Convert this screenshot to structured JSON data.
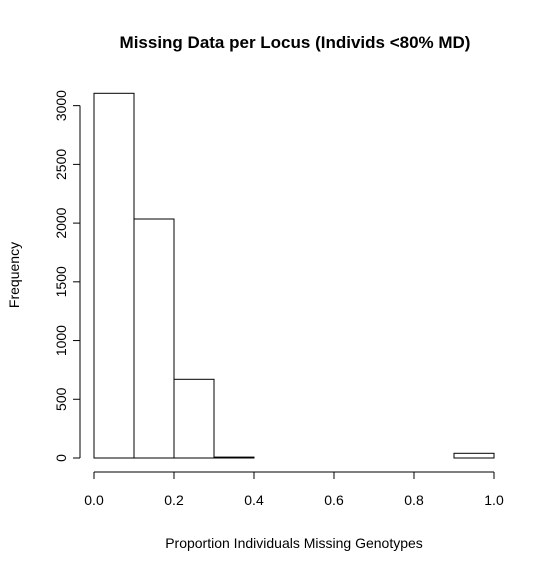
{
  "chart_data": {
    "type": "bar",
    "title": "Missing Data per Locus (Individs <80% MD)",
    "xlabel": "Proportion Individuals Missing Genotypes",
    "ylabel": "Frequency",
    "xlim": [
      0.0,
      1.0
    ],
    "ylim": [
      0,
      3100
    ],
    "x_ticks": [
      "0.0",
      "0.2",
      "0.4",
      "0.6",
      "0.8",
      "1.0"
    ],
    "y_ticks": [
      "0",
      "500",
      "1000",
      "1500",
      "2000",
      "2500",
      "3000"
    ],
    "bins": [
      {
        "from": 0.0,
        "to": 0.1,
        "value": 3105
      },
      {
        "from": 0.1,
        "to": 0.2,
        "value": 2035
      },
      {
        "from": 0.2,
        "to": 0.3,
        "value": 670
      },
      {
        "from": 0.3,
        "to": 0.4,
        "value": 8
      },
      {
        "from": 0.4,
        "to": 0.5,
        "value": 0
      },
      {
        "from": 0.5,
        "to": 0.6,
        "value": 0
      },
      {
        "from": 0.6,
        "to": 0.7,
        "value": 0
      },
      {
        "from": 0.7,
        "to": 0.8,
        "value": 0
      },
      {
        "from": 0.8,
        "to": 0.9,
        "value": 0
      },
      {
        "from": 0.9,
        "to": 1.0,
        "value": 40
      }
    ],
    "bar_fill": "#ffffff",
    "bar_stroke": "#000000",
    "grid": false,
    "legend": "none"
  }
}
